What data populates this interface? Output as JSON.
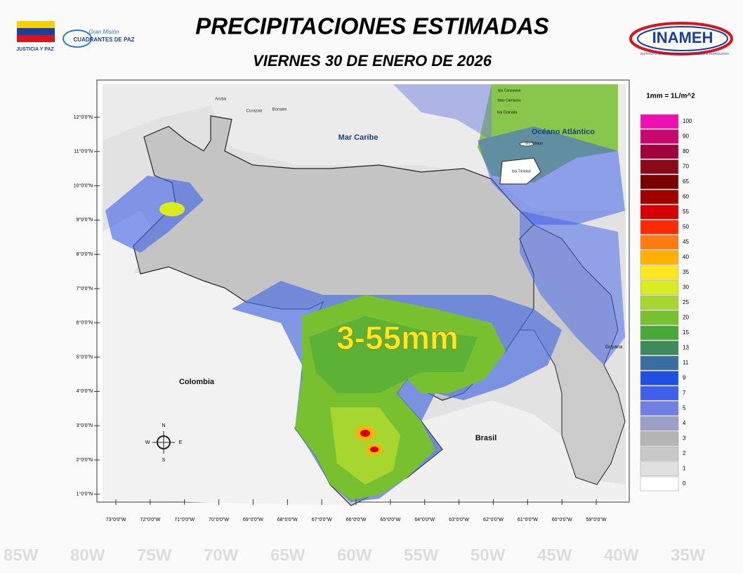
{
  "header": {
    "title": "PRECIPITACIONES ESTIMADAS",
    "subtitle": "VIERNES 30 DE ENERO DE 2026",
    "logos": {
      "left_caption": "JUSTICIA Y PAZ",
      "gran_mision": "Gran Misión",
      "cuadrantes": "CUADRANTES DE PAZ",
      "inameh": "INAMEH",
      "inameh_caption": "INSTITUTO NACIONAL DE METEOROLOGIA E HIDROLOGIA"
    }
  },
  "map": {
    "labels": [
      "Mar Caribe",
      "Océano Atlántico",
      "Colombia",
      "Brasil",
      "Guyana",
      "Aruba",
      "Curazao",
      "Bonaire",
      "Isla Canouwan",
      "Islas Carriacou",
      "Isla Granada",
      "Isla Tobago",
      "Isla Trinidad"
    ],
    "highlight": "3-55mm",
    "lat_ticks": [
      "12°0'0\"N",
      "11°0'0\"N",
      "10°0'0\"N",
      "9°0'0\"N",
      "8°0'0\"N",
      "7°0'0\"N",
      "6°0'0\"N",
      "5°0'0\"N",
      "4°0'0\"N",
      "3°0'0\"N",
      "2°0'0\"N",
      "1°0'0\"N"
    ],
    "lon_ticks": [
      "73°0'0\"W",
      "72°0'0\"W",
      "71°0'0\"W",
      "70°0'0\"W",
      "69°0'0\"W",
      "68°0'0\"W",
      "67°0'0\"W",
      "66°0'0\"W",
      "65°0'0\"W",
      "64°0'0\"W",
      "63°0'0\"W",
      "62°0'0\"W",
      "61°0'0\"W",
      "60°0'0\"W",
      "59°0'0\"W"
    ],
    "compass": [
      "N",
      "S",
      "E",
      "W"
    ]
  },
  "legend": {
    "unit": "1mm = 1L/m^2",
    "items": [
      {
        "value": 100,
        "color": "#ee10b0"
      },
      {
        "value": 90,
        "color": "#c8086e"
      },
      {
        "value": 80,
        "color": "#a0003c"
      },
      {
        "value": 70,
        "color": "#8a0a1a"
      },
      {
        "value": 65,
        "color": "#7a0000"
      },
      {
        "value": 60,
        "color": "#a00000"
      },
      {
        "value": 55,
        "color": "#d60000"
      },
      {
        "value": 50,
        "color": "#ff2a00"
      },
      {
        "value": 45,
        "color": "#ff7a10"
      },
      {
        "value": 40,
        "color": "#ffb000"
      },
      {
        "value": 35,
        "color": "#ffe820"
      },
      {
        "value": 30,
        "color": "#d8ec20"
      },
      {
        "value": 25,
        "color": "#a8d630"
      },
      {
        "value": 20,
        "color": "#78c030"
      },
      {
        "value": 15,
        "color": "#48a838"
      },
      {
        "value": 13,
        "color": "#3e8a5a"
      },
      {
        "value": 11,
        "color": "#3a6ea0"
      },
      {
        "value": 9,
        "color": "#2050e0"
      },
      {
        "value": 7,
        "color": "#4060e8"
      },
      {
        "value": 5,
        "color": "#7080e0"
      },
      {
        "value": 4,
        "color": "#9aa0c8"
      },
      {
        "value": 3,
        "color": "#b4b4b4"
      },
      {
        "value": 2,
        "color": "#c8c8c8"
      },
      {
        "value": 1,
        "color": "#e0e0e0"
      },
      {
        "value": 0,
        "color": "#ffffff"
      }
    ]
  },
  "background_labels": [
    "85W",
    "80W",
    "75W",
    "70W",
    "65W",
    "60W",
    "55W",
    "50W",
    "45W",
    "40W",
    "35W"
  ]
}
